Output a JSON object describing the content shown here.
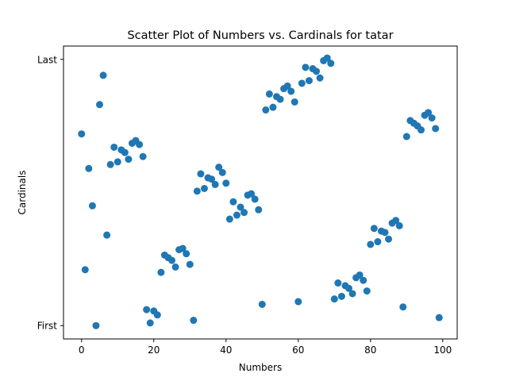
{
  "chart_data": {
    "type": "scatter",
    "title": "Scatter Plot of Numbers vs. Cardinals for tatar",
    "xlabel": "Numbers",
    "ylabel": "Cardinals",
    "xlim": [
      -5,
      104
    ],
    "ylim": [
      -0.05,
      1.05
    ],
    "xticks": [
      0,
      20,
      40,
      60,
      80,
      100
    ],
    "xtick_labels": [
      "0",
      "20",
      "40",
      "60",
      "80",
      "100"
    ],
    "yticks": [
      0,
      1
    ],
    "ytick_labels": [
      "First",
      "Last"
    ],
    "grid": false,
    "marker_color": "#1f77b4",
    "points": [
      [
        0,
        0.72
      ],
      [
        1,
        0.21
      ],
      [
        2,
        0.59
      ],
      [
        3,
        0.45
      ],
      [
        4,
        0.0
      ],
      [
        5,
        0.83
      ],
      [
        6,
        0.94
      ],
      [
        7,
        0.34
      ],
      [
        8,
        0.605
      ],
      [
        9,
        0.67
      ],
      [
        10,
        0.615
      ],
      [
        11,
        0.66
      ],
      [
        12,
        0.65
      ],
      [
        13,
        0.625
      ],
      [
        14,
        0.685
      ],
      [
        15,
        0.695
      ],
      [
        16,
        0.68
      ],
      [
        17,
        0.635
      ],
      [
        18,
        0.06
      ],
      [
        19,
        0.01
      ],
      [
        20,
        0.055
      ],
      [
        21,
        0.04
      ],
      [
        22,
        0.2
      ],
      [
        23,
        0.265
      ],
      [
        24,
        0.255
      ],
      [
        25,
        0.245
      ],
      [
        26,
        0.22
      ],
      [
        27,
        0.285
      ],
      [
        28,
        0.29
      ],
      [
        29,
        0.27
      ],
      [
        30,
        0.23
      ],
      [
        31,
        0.02
      ],
      [
        32,
        0.505
      ],
      [
        33,
        0.57
      ],
      [
        34,
        0.515
      ],
      [
        35,
        0.555
      ],
      [
        36,
        0.55
      ],
      [
        37,
        0.53
      ],
      [
        38,
        0.595
      ],
      [
        39,
        0.575
      ],
      [
        40,
        0.535
      ],
      [
        41,
        0.4
      ],
      [
        42,
        0.465
      ],
      [
        43,
        0.415
      ],
      [
        44,
        0.445
      ],
      [
        45,
        0.425
      ],
      [
        46,
        0.49
      ],
      [
        47,
        0.495
      ],
      [
        48,
        0.475
      ],
      [
        49,
        0.435
      ],
      [
        50,
        0.08
      ],
      [
        51,
        0.81
      ],
      [
        52,
        0.87
      ],
      [
        53,
        0.82
      ],
      [
        54,
        0.86
      ],
      [
        55,
        0.85
      ],
      [
        56,
        0.89
      ],
      [
        57,
        0.9
      ],
      [
        58,
        0.88
      ],
      [
        59,
        0.84
      ],
      [
        60,
        0.09
      ],
      [
        61,
        0.91
      ],
      [
        62,
        0.97
      ],
      [
        63,
        0.92
      ],
      [
        64,
        0.965
      ],
      [
        65,
        0.955
      ],
      [
        66,
        0.93
      ],
      [
        67,
        0.995
      ],
      [
        68,
        1.005
      ],
      [
        69,
        0.985
      ],
      [
        70,
        0.1
      ],
      [
        71,
        0.16
      ],
      [
        72,
        0.11
      ],
      [
        73,
        0.15
      ],
      [
        74,
        0.14
      ],
      [
        75,
        0.12
      ],
      [
        76,
        0.18
      ],
      [
        77,
        0.19
      ],
      [
        78,
        0.17
      ],
      [
        79,
        0.13
      ],
      [
        80,
        0.305
      ],
      [
        81,
        0.365
      ],
      [
        82,
        0.315
      ],
      [
        83,
        0.355
      ],
      [
        84,
        0.35
      ],
      [
        85,
        0.325
      ],
      [
        86,
        0.385
      ],
      [
        87,
        0.395
      ],
      [
        88,
        0.375
      ],
      [
        89,
        0.07
      ],
      [
        90,
        0.71
      ],
      [
        91,
        0.77
      ],
      [
        92,
        0.76
      ],
      [
        93,
        0.75
      ],
      [
        94,
        0.735
      ],
      [
        95,
        0.79
      ],
      [
        96,
        0.8
      ],
      [
        97,
        0.78
      ],
      [
        98,
        0.74
      ],
      [
        99,
        0.03
      ]
    ]
  }
}
